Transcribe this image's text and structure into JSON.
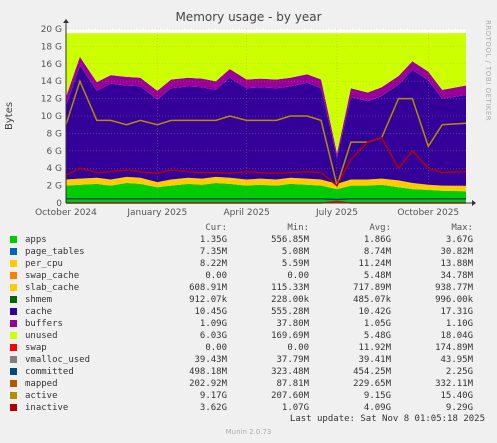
{
  "title": "Memory usage - by year",
  "watermark": "RRDTOOL / TOBI OETIKER",
  "footer": {
    "last_update": "Last update:  Sat Nov  8 01:05:18 2025",
    "generator": "Munin 2.0.73"
  },
  "legend_headers": {
    "cur": "Cur:",
    "min": "Min:",
    "avg": "Avg:",
    "max": "Max:"
  },
  "legend": [
    {
      "name": "apps",
      "color": "#00cc00",
      "cur": "1.35G",
      "min": "556.85M",
      "avg": "1.86G",
      "max": "3.67G"
    },
    {
      "name": "page_tables",
      "color": "#0066b3",
      "cur": "7.35M",
      "min": "5.08M",
      "avg": "8.74M",
      "max": "30.82M"
    },
    {
      "name": "per_cpu",
      "color": "#ffcc00",
      "cur": "8.22M",
      "min": "5.59M",
      "avg": "11.24M",
      "max": "13.88M"
    },
    {
      "name": "swap_cache",
      "color": "#ff8000",
      "cur": "0.00",
      "min": "0.00",
      "avg": "5.48M",
      "max": "34.78M"
    },
    {
      "name": "slab_cache",
      "color": "#ffcc00",
      "cur": "608.91M",
      "min": "115.33M",
      "avg": "717.89M",
      "max": "938.77M"
    },
    {
      "name": "shmem",
      "color": "#006600",
      "cur": "912.07k",
      "min": "228.00k",
      "avg": "485.07k",
      "max": "996.00k"
    },
    {
      "name": "cache",
      "color": "#330099",
      "cur": "10.45G",
      "min": "555.28M",
      "avg": "10.42G",
      "max": "17.31G"
    },
    {
      "name": "buffers",
      "color": "#990099",
      "cur": "1.09G",
      "min": "37.80M",
      "avg": "1.05G",
      "max": "1.10G"
    },
    {
      "name": "unused",
      "color": "#ccff00",
      "cur": "6.03G",
      "min": "169.69M",
      "avg": "5.48G",
      "max": "18.04G"
    },
    {
      "name": "swap",
      "color": "#ff0000",
      "cur": "0.00",
      "min": "0.00",
      "avg": "11.92M",
      "max": "174.89M"
    },
    {
      "name": "vmalloc_used",
      "color": "#808080",
      "cur": "39.43M",
      "min": "37.79M",
      "avg": "39.41M",
      "max": "43.95M"
    },
    {
      "name": "committed",
      "color": "#00487d",
      "cur": "498.18M",
      "min": "323.48M",
      "avg": "454.25M",
      "max": "2.25G"
    },
    {
      "name": "mapped",
      "color": "#b35a00",
      "cur": "202.92M",
      "min": "87.81M",
      "avg": "229.65M",
      "max": "332.11M"
    },
    {
      "name": "active",
      "color": "#b38f00",
      "cur": "9.17G",
      "min": "207.60M",
      "avg": "9.15G",
      "max": "15.40G"
    },
    {
      "name": "inactive",
      "color": "#b30000",
      "cur": "3.62G",
      "min": "1.07G",
      "avg": "4.09G",
      "max": "9.29G"
    }
  ],
  "chart_data": {
    "type": "area",
    "title": "Memory usage - by year",
    "ylabel": "Bytes",
    "ylim": [
      0,
      20
    ],
    "yunit": "G",
    "yticks": [
      "0",
      "2 G",
      "4 G",
      "6 G",
      "8 G",
      "10 G",
      "12 G",
      "14 G",
      "16 G",
      "18 G",
      "20 G"
    ],
    "xlim": [
      "2024-10-01",
      "2025-11-08"
    ],
    "xticks": [
      {
        "label": "October 2024",
        "date": "2024-10-01"
      },
      {
        "label": "January 2025",
        "date": "2025-01-01"
      },
      {
        "label": "April 2025",
        "date": "2025-04-01"
      },
      {
        "label": "July 2025",
        "date": "2025-07-01"
      },
      {
        "label": "October 2025",
        "date": "2025-10-01"
      }
    ],
    "grid": true,
    "x": [
      "2024-10-01",
      "2024-10-15",
      "2024-11-01",
      "2024-11-15",
      "2024-12-01",
      "2024-12-15",
      "2025-01-01",
      "2025-01-15",
      "2025-02-01",
      "2025-02-15",
      "2025-03-01",
      "2025-03-15",
      "2025-04-01",
      "2025-04-15",
      "2025-05-01",
      "2025-05-15",
      "2025-06-01",
      "2025-06-15",
      "2025-07-01",
      "2025-07-15",
      "2025-08-01",
      "2025-08-15",
      "2025-09-01",
      "2025-09-15",
      "2025-10-01",
      "2025-10-15",
      "2025-11-08"
    ],
    "stack": [
      {
        "name": "apps",
        "values": [
          2.0,
          2.1,
          2.2,
          2.0,
          2.3,
          2.2,
          1.8,
          2.0,
          2.2,
          2.1,
          2.3,
          2.2,
          2.0,
          2.1,
          2.0,
          2.2,
          2.1,
          2.0,
          1.6,
          2.0,
          2.0,
          2.1,
          1.8,
          1.6,
          1.5,
          1.4,
          1.35
        ]
      },
      {
        "name": "slab_cache",
        "values": [
          0.7,
          0.7,
          0.7,
          0.7,
          0.7,
          0.7,
          0.6,
          0.7,
          0.7,
          0.7,
          0.7,
          0.7,
          0.7,
          0.7,
          0.7,
          0.7,
          0.7,
          0.7,
          0.6,
          0.7,
          0.7,
          0.7,
          0.8,
          0.7,
          0.6,
          0.6,
          0.61
        ]
      },
      {
        "name": "cache",
        "values": [
          8.5,
          13.0,
          10.0,
          11.0,
          10.5,
          10.5,
          9.5,
          10.5,
          10.5,
          10.5,
          10.0,
          11.5,
          10.5,
          10.5,
          10.5,
          10.5,
          11.0,
          10.5,
          3.0,
          9.5,
          9.0,
          9.5,
          11.0,
          13.0,
          12.0,
          10.0,
          10.45
        ]
      },
      {
        "name": "buffers",
        "values": [
          1.0,
          1.0,
          1.0,
          1.0,
          1.0,
          1.0,
          1.0,
          1.0,
          1.0,
          1.0,
          1.0,
          1.0,
          1.0,
          1.0,
          1.0,
          1.0,
          1.0,
          1.0,
          0.5,
          1.0,
          1.0,
          1.0,
          1.0,
          1.0,
          1.0,
          1.0,
          1.09
        ]
      },
      {
        "name": "unused",
        "values": [
          7.3,
          2.7,
          5.6,
          4.8,
          5.0,
          5.1,
          6.6,
          5.3,
          5.1,
          5.2,
          5.5,
          4.1,
          5.3,
          5.2,
          5.3,
          5.1,
          4.7,
          5.3,
          13.8,
          6.3,
          6.8,
          6.2,
          4.9,
          3.2,
          4.4,
          6.5,
          6.03
        ]
      }
    ],
    "lines": [
      {
        "name": "active",
        "values": [
          9.0,
          14.0,
          9.5,
          9.5,
          9.0,
          9.5,
          9.0,
          9.5,
          9.5,
          9.5,
          9.5,
          10.0,
          9.5,
          9.5,
          9.5,
          10.0,
          10.0,
          9.5,
          2.0,
          7.0,
          7.0,
          7.5,
          12.0,
          12.0,
          6.5,
          9.0,
          9.17
        ]
      },
      {
        "name": "inactive",
        "values": [
          3.2,
          4.0,
          3.5,
          3.6,
          3.8,
          3.6,
          3.4,
          3.8,
          3.6,
          3.5,
          3.5,
          3.4,
          3.6,
          3.5,
          3.4,
          3.5,
          3.6,
          3.5,
          2.0,
          5.0,
          7.0,
          7.5,
          4.0,
          6.0,
          4.0,
          3.5,
          3.62
        ]
      },
      {
        "name": "committed",
        "values": [
          0.5,
          0.5,
          0.5,
          0.5,
          0.5,
          0.5,
          0.5,
          0.5,
          0.5,
          0.5,
          0.5,
          0.5,
          0.5,
          0.5,
          0.5,
          0.5,
          0.5,
          0.5,
          0.4,
          0.5,
          0.5,
          0.5,
          0.5,
          0.5,
          0.5,
          0.5,
          0.5
        ]
      },
      {
        "name": "swap",
        "values": [
          0,
          0,
          0,
          0,
          0,
          0,
          0,
          0,
          0,
          0,
          0,
          0,
          0,
          0,
          0,
          0,
          0,
          0,
          0.17,
          0,
          0,
          0,
          0,
          0,
          0,
          0,
          0
        ]
      }
    ]
  }
}
